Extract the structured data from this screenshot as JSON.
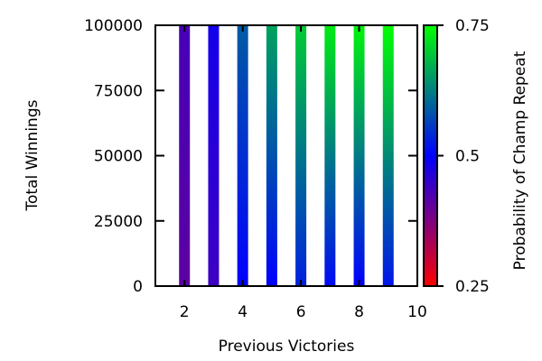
{
  "chart_data": {
    "type": "bar",
    "xlabel": "Previous Victories",
    "ylabel": "Total Winnings",
    "xlim": [
      1,
      10
    ],
    "ylim": [
      0,
      100000
    ],
    "x_ticks": [
      "2",
      "4",
      "6",
      "8",
      "10"
    ],
    "y_ticks": [
      "0",
      "25000",
      "50000",
      "75000",
      "100000"
    ],
    "colorbar": {
      "label": "Probability of Champ Repeat",
      "range": [
        0.25,
        0.75
      ],
      "ticks": [
        "0.25",
        "0.5",
        "0.75"
      ],
      "colors": [
        "#ff0000",
        "#0000ff",
        "#00ff00"
      ]
    },
    "series": [
      {
        "x": [
          2,
          3,
          4,
          5,
          6,
          7,
          8,
          9
        ],
        "y": [
          100000,
          100000,
          100000,
          100000,
          100000,
          100000,
          100000,
          100000
        ],
        "color_value_top": [
          0.43,
          0.48,
          0.59,
          0.66,
          0.7,
          0.73,
          0.74,
          0.75
        ],
        "color_value_bottom": [
          0.41,
          0.44,
          0.5,
          0.5,
          0.53,
          0.51,
          0.5,
          0.52
        ]
      }
    ]
  }
}
